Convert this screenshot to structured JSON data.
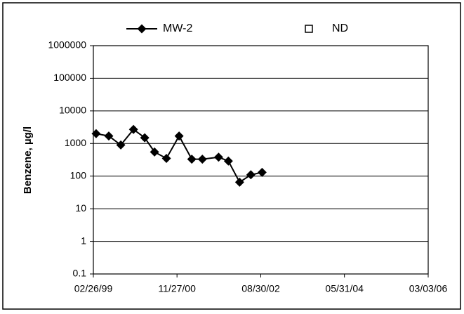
{
  "chart_data": {
    "type": "line",
    "y_label": "Benzene, µg/l",
    "x": [
      "03/19/99",
      "06/24/99",
      "09/24/99",
      "12/30/99",
      "03/25/00",
      "06/08/00",
      "09/07/00",
      "12/13/00",
      "03/20/01",
      "06/09/01",
      "10/11/01",
      "12/25/01",
      "03/21/02",
      "06/15/02",
      "09/09/02"
    ],
    "series": [
      {
        "name": "MW-2",
        "color": "#000000",
        "marker": "diamond",
        "values": [
          2000,
          1700,
          900,
          2700,
          1500,
          550,
          350,
          1700,
          330,
          330,
          380,
          290,
          65,
          110,
          130
        ]
      },
      {
        "name": "ND",
        "color": "#000000",
        "marker": "square-open",
        "values": [
          null,
          null,
          null,
          null,
          null,
          null,
          null,
          null,
          null,
          null,
          null,
          null,
          null,
          null,
          null
        ]
      }
    ],
    "xlim": [
      "02/26/99",
      "03/03/06"
    ],
    "xticks": [
      "02/26/99",
      "11/27/00",
      "08/30/02",
      "05/31/04",
      "03/03/06"
    ],
    "ylim": [
      0.1,
      1000000
    ],
    "yscale": "log",
    "yticks": [
      0.1,
      1,
      10,
      100,
      1000,
      10000,
      100000,
      1000000
    ],
    "grid": true,
    "legend": "top"
  }
}
